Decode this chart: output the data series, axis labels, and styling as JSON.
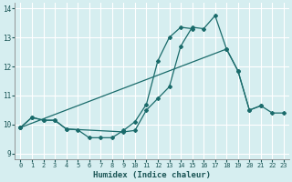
{
  "title": "",
  "xlabel": "Humidex (Indice chaleur)",
  "ylabel": "",
  "background_color": "#d6eef0",
  "grid_color": "#b0d8dc",
  "line_color": "#1a6b6b",
  "xlim": [
    -0.5,
    23.5
  ],
  "ylim": [
    8.8,
    14.2
  ],
  "yticks": [
    9,
    10,
    11,
    12,
    13,
    14
  ],
  "xticks": [
    0,
    1,
    2,
    3,
    4,
    5,
    6,
    7,
    8,
    9,
    10,
    11,
    12,
    13,
    14,
    15,
    16,
    17,
    18,
    19,
    20,
    21,
    22,
    23
  ],
  "series": [
    {
      "x": [
        0,
        1,
        2,
        3,
        4,
        5,
        6,
        7,
        8,
        9,
        10,
        11,
        12,
        13,
        14,
        15
      ],
      "y": [
        9.9,
        10.25,
        10.15,
        10.15,
        9.85,
        9.82,
        9.55,
        9.55,
        9.55,
        9.8,
        10.1,
        10.7,
        12.2,
        13.0,
        13.35,
        13.3
      ]
    },
    {
      "x": [
        0,
        1,
        2,
        3,
        4,
        9,
        10,
        11,
        12,
        13,
        14,
        15,
        16,
        17,
        18,
        19,
        20,
        21
      ],
      "y": [
        9.9,
        10.25,
        10.15,
        10.15,
        9.85,
        9.75,
        9.8,
        10.5,
        10.9,
        11.3,
        12.7,
        13.35,
        13.3,
        13.75,
        12.6,
        11.85,
        10.5,
        10.65
      ]
    },
    {
      "x": [
        0,
        18,
        19,
        20,
        21,
        22,
        23
      ],
      "y": [
        9.9,
        12.6,
        11.85,
        10.5,
        10.65,
        10.4,
        10.4
      ]
    }
  ]
}
